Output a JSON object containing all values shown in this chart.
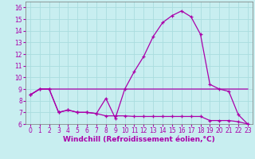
{
  "xlabel": "Windchill (Refroidissement éolien,°C)",
  "background_color": "#c8eef0",
  "grid_color": "#aadddf",
  "line_color": "#aa00aa",
  "xlim": [
    -0.5,
    23.5
  ],
  "ylim": [
    6,
    16.5
  ],
  "xticks": [
    0,
    1,
    2,
    3,
    4,
    5,
    6,
    7,
    8,
    9,
    10,
    11,
    12,
    13,
    14,
    15,
    16,
    17,
    18,
    19,
    20,
    21,
    22,
    23
  ],
  "yticks": [
    6,
    7,
    8,
    9,
    10,
    11,
    12,
    13,
    14,
    15,
    16
  ],
  "line1_x": [
    0,
    1,
    2,
    3,
    4,
    5,
    6,
    7,
    8,
    9,
    10,
    11,
    12,
    13,
    14,
    15,
    16,
    17,
    18,
    19,
    20,
    21,
    22,
    23
  ],
  "line1_y": [
    8.5,
    9.0,
    9.0,
    7.0,
    7.2,
    7.0,
    7.0,
    6.9,
    8.2,
    6.5,
    9.0,
    10.5,
    11.8,
    13.5,
    14.7,
    15.3,
    15.7,
    15.2,
    13.7,
    9.4,
    9.0,
    8.8,
    6.8,
    6.0
  ],
  "line2_x": [
    0,
    1,
    2,
    3,
    4,
    5,
    6,
    7,
    8,
    9,
    10,
    11,
    12,
    13,
    14,
    15,
    16,
    17,
    18,
    19,
    20,
    21,
    22,
    23
  ],
  "line2_y": [
    8.5,
    9.0,
    9.0,
    9.0,
    9.0,
    9.0,
    9.0,
    9.0,
    9.0,
    9.0,
    9.0,
    9.0,
    9.0,
    9.0,
    9.0,
    9.0,
    9.0,
    9.0,
    9.0,
    9.0,
    9.0,
    9.0,
    9.0,
    9.0
  ],
  "line3_x": [
    0,
    1,
    2,
    3,
    4,
    5,
    6,
    7,
    8,
    9,
    10,
    11,
    12,
    13,
    14,
    15,
    16,
    17,
    18,
    19,
    20,
    21,
    22,
    23
  ],
  "line3_y": [
    8.5,
    9.0,
    9.0,
    7.0,
    7.2,
    7.0,
    7.0,
    6.9,
    6.7,
    6.7,
    6.7,
    6.65,
    6.65,
    6.65,
    6.65,
    6.65,
    6.65,
    6.65,
    6.65,
    6.3,
    6.3,
    6.3,
    6.2,
    6.0
  ],
  "label_fontsize": 6.5,
  "tick_fontsize": 5.5
}
